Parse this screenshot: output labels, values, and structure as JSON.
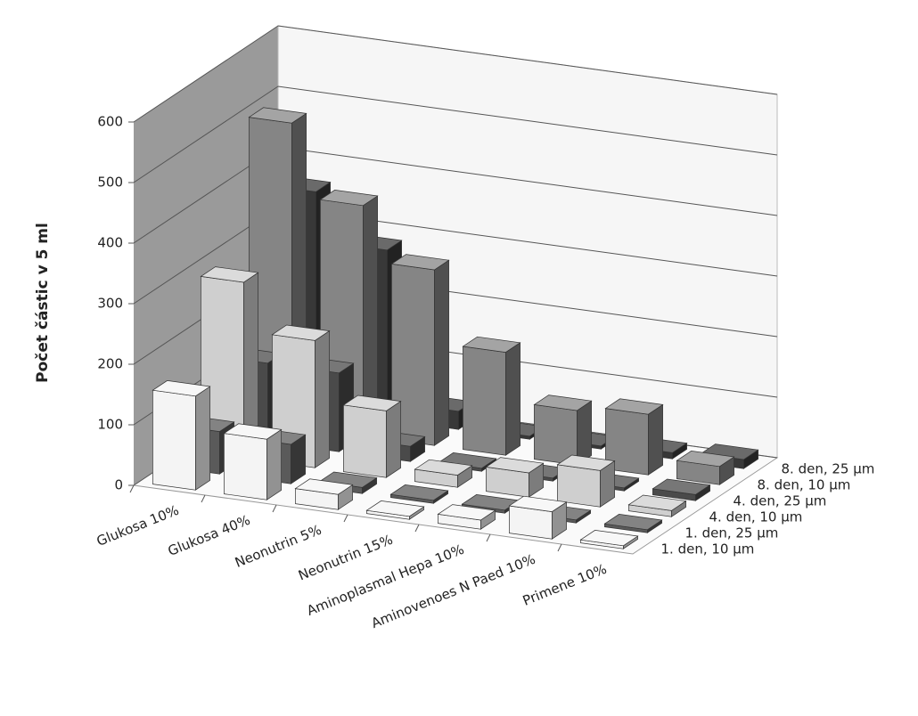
{
  "chart_data": {
    "type": "bar3d",
    "y_label": "Počet částic v 5 ml",
    "categories": [
      "Glukosa 10%",
      "Glukosa 40%",
      "Neonutrin 5%",
      "Neonutrin 15%",
      "Aminoplasmal Hepa 10%",
      "Aminovenoes N Paed 10%",
      "Primene 10%"
    ],
    "series": [
      {
        "name": "1. den, 10 µm",
        "color": "#f4f4f4",
        "values": [
          155,
          100,
          25,
          5,
          15,
          45,
          5
        ]
      },
      {
        "name": "1. den, 25 µm",
        "color": "#5a5a5a",
        "values": [
          70,
          65,
          10,
          5,
          5,
          5,
          5
        ]
      },
      {
        "name": "4. den, 10 µm",
        "color": "#cfcfcf",
        "values": [
          290,
          210,
          110,
          20,
          40,
          60,
          10
        ]
      },
      {
        "name": "4. den, 25 µm",
        "color": "#4a4a4a",
        "values": [
          130,
          130,
          25,
          5,
          5,
          5,
          10
        ]
      },
      {
        "name": "8. den, 10 µm",
        "color": "#858585",
        "values": [
          500,
          380,
          290,
          170,
          90,
          100,
          30
        ]
      },
      {
        "name": "8. den, 25 µm",
        "color": "#383838",
        "values": [
          360,
          280,
          30,
          5,
          5,
          10,
          15
        ]
      }
    ],
    "ylim": [
      0,
      600
    ],
    "yticks": [
      0,
      100,
      200,
      300,
      400,
      500,
      600
    ],
    "grid": true
  }
}
